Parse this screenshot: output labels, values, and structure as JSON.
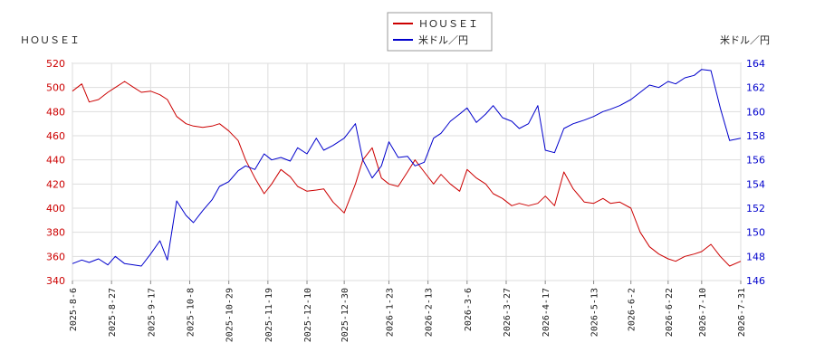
{
  "chart_data": {
    "type": "line",
    "left_axis_label": "ＨＯＵＳＥＩ",
    "right_axis_label": "米ドル／円",
    "left_ylim": [
      340,
      520
    ],
    "left_yticks": [
      340,
      360,
      380,
      400,
      420,
      440,
      460,
      480,
      500,
      520
    ],
    "right_ylim": [
      146,
      164
    ],
    "right_yticks": [
      146,
      148,
      150,
      152,
      154,
      156,
      158,
      160,
      162,
      164
    ],
    "x_ticks": [
      "2025-8-6",
      "2025-8-27",
      "2025-9-17",
      "2025-10-8",
      "2025-10-29",
      "2025-11-19",
      "2025-12-10",
      "2025-12-30",
      "2026-1-23",
      "2026-2-13",
      "2026-3-6",
      "2026-3-27",
      "2026-4-17",
      "2026-5-13",
      "2026-6-2",
      "2026-6-22",
      "2026-7-10",
      "2026-7-31"
    ],
    "grid": true,
    "legend_position": "top-center",
    "series": [
      {
        "name": "ＨＯＵＳＥＩ",
        "color": "#cc0000",
        "axis": "left",
        "x": [
          "2025-8-6",
          "2025-8-11",
          "2025-8-15",
          "2025-8-20",
          "2025-8-25",
          "2025-8-29",
          "2025-9-3",
          "2025-9-8",
          "2025-9-12",
          "2025-9-17",
          "2025-9-22",
          "2025-9-26",
          "2025-10-1",
          "2025-10-6",
          "2025-10-10",
          "2025-10-15",
          "2025-10-20",
          "2025-10-24",
          "2025-10-29",
          "2025-11-3",
          "2025-11-7",
          "2025-11-12",
          "2025-11-17",
          "2025-11-21",
          "2025-11-26",
          "2025-12-1",
          "2025-12-5",
          "2025-12-10",
          "2025-12-15",
          "2025-12-19",
          "2025-12-24",
          "2025-12-30",
          "2026-1-5",
          "2026-1-9",
          "2026-1-14",
          "2026-1-19",
          "2026-1-23",
          "2026-1-28",
          "2026-2-2",
          "2026-2-6",
          "2026-2-11",
          "2026-2-16",
          "2026-2-20",
          "2026-2-25",
          "2026-3-2",
          "2026-3-6",
          "2026-3-11",
          "2026-3-16",
          "2026-3-20",
          "2026-3-25",
          "2026-3-30",
          "2026-4-3",
          "2026-4-8",
          "2026-4-13",
          "2026-4-17",
          "2026-4-22",
          "2026-4-27",
          "2026-5-2",
          "2026-5-8",
          "2026-5-13",
          "2026-5-18",
          "2026-5-22",
          "2026-5-27",
          "2026-6-2",
          "2026-6-7",
          "2026-6-12",
          "2026-6-17",
          "2026-6-22",
          "2026-6-26",
          "2026-7-1",
          "2026-7-6",
          "2026-7-10",
          "2026-7-15",
          "2026-7-20",
          "2026-7-25",
          "2026-7-31"
        ],
        "values": [
          497,
          503,
          488,
          490,
          496,
          500,
          505,
          500,
          496,
          497,
          494,
          490,
          476,
          470,
          468,
          467,
          468,
          470,
          464,
          456,
          440,
          425,
          412,
          420,
          432,
          426,
          418,
          414,
          415,
          416,
          405,
          396,
          420,
          440,
          450,
          425,
          420,
          418,
          430,
          440,
          430,
          420,
          428,
          420,
          414,
          432,
          425,
          420,
          412,
          408,
          402,
          404,
          402,
          404,
          410,
          402,
          430,
          416,
          405,
          404,
          408,
          404,
          405,
          400,
          380,
          368,
          362,
          358,
          356,
          360,
          362,
          364,
          370,
          360,
          352,
          356
        ]
      },
      {
        "name": "米ドル／円",
        "color": "#0000cc",
        "axis": "right",
        "x": [
          "2025-8-6",
          "2025-8-11",
          "2025-8-15",
          "2025-8-20",
          "2025-8-25",
          "2025-8-29",
          "2025-9-3",
          "2025-9-8",
          "2025-9-12",
          "2025-9-17",
          "2025-9-22",
          "2025-9-26",
          "2025-10-1",
          "2025-10-6",
          "2025-10-10",
          "2025-10-15",
          "2025-10-20",
          "2025-10-24",
          "2025-10-29",
          "2025-11-3",
          "2025-11-7",
          "2025-11-12",
          "2025-11-17",
          "2025-11-21",
          "2025-11-26",
          "2025-12-1",
          "2025-12-5",
          "2025-12-10",
          "2025-12-15",
          "2025-12-19",
          "2025-12-24",
          "2025-12-30",
          "2026-1-5",
          "2026-1-9",
          "2026-1-14",
          "2026-1-19",
          "2026-1-23",
          "2026-1-28",
          "2026-2-2",
          "2026-2-6",
          "2026-2-11",
          "2026-2-16",
          "2026-2-20",
          "2026-2-25",
          "2026-3-2",
          "2026-3-6",
          "2026-3-11",
          "2026-3-16",
          "2026-3-20",
          "2026-3-25",
          "2026-3-30",
          "2026-4-3",
          "2026-4-8",
          "2026-4-13",
          "2026-4-17",
          "2026-4-22",
          "2026-4-27",
          "2026-5-2",
          "2026-5-8",
          "2026-5-13",
          "2026-5-18",
          "2026-5-22",
          "2026-5-27",
          "2026-6-2",
          "2026-6-7",
          "2026-6-12",
          "2026-6-17",
          "2026-6-22",
          "2026-6-26",
          "2026-7-1",
          "2026-7-6",
          "2026-7-10",
          "2026-7-15",
          "2026-7-20",
          "2026-7-25",
          "2026-7-31"
        ],
        "values": [
          147.4,
          147.7,
          147.5,
          147.8,
          147.3,
          148.0,
          147.4,
          147.3,
          147.2,
          148.2,
          149.3,
          147.7,
          152.6,
          151.4,
          150.8,
          151.8,
          152.7,
          153.8,
          154.2,
          155.1,
          155.5,
          155.2,
          156.5,
          156.0,
          156.2,
          155.9,
          157.0,
          156.5,
          157.8,
          156.8,
          157.2,
          157.8,
          159.0,
          156.0,
          154.5,
          155.5,
          157.5,
          156.2,
          156.3,
          155.5,
          155.8,
          157.8,
          158.2,
          159.2,
          159.8,
          160.3,
          159.1,
          159.8,
          160.5,
          159.5,
          159.2,
          158.6,
          159.0,
          160.5,
          156.8,
          156.6,
          158.6,
          159.0,
          159.3,
          159.6,
          160.0,
          160.2,
          160.5,
          161.0,
          161.6,
          162.2,
          162.0,
          162.5,
          162.3,
          162.8,
          163.0,
          163.5,
          163.4,
          160.3,
          157.6,
          157.8
        ]
      }
    ]
  }
}
